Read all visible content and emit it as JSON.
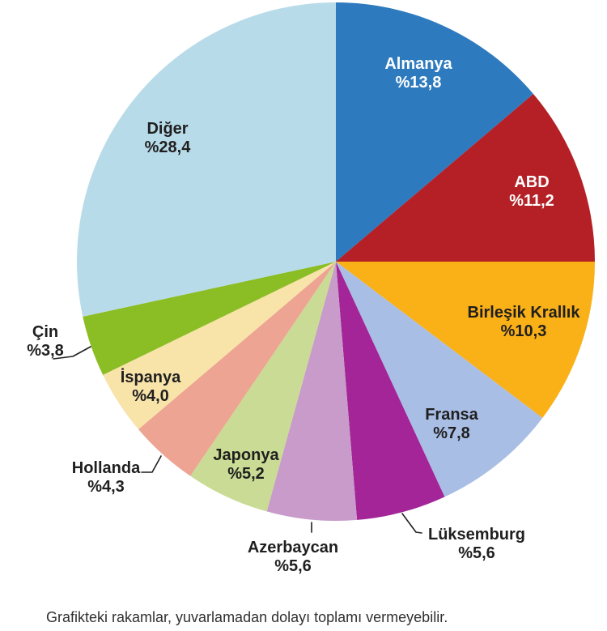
{
  "chart_data": {
    "type": "pie",
    "title": "",
    "unit": "percent",
    "start_angle_deg": 0,
    "direction": "clockwise",
    "legend_position": "none",
    "footnote": "Grafikteki rakamlar, yuvarlamadan dolayı toplamı vermeyebilir.",
    "slices": [
      {
        "label": "Almanya",
        "value": 13.8,
        "display": "%13,8",
        "color": "#2E7ABF",
        "label_color": "#ffffff",
        "label_position": "inside"
      },
      {
        "label": "ABD",
        "value": 11.2,
        "display": "%11,2",
        "color": "#B42025",
        "label_color": "#ffffff",
        "label_position": "inside"
      },
      {
        "label": "Birleşik Krallık",
        "value": 10.3,
        "display": "%10,3",
        "color": "#FAB017",
        "label_color": "#1f1f1f",
        "label_position": "inside"
      },
      {
        "label": "Fransa",
        "value": 7.8,
        "display": "%7,8",
        "color": "#A9BEE5",
        "label_color": "#1f1f1f",
        "label_position": "inside"
      },
      {
        "label": "Lüksemburg",
        "value": 5.6,
        "display": "%5,6",
        "color": "#A32598",
        "label_color": "#1f1f1f",
        "label_position": "outside"
      },
      {
        "label": "Azerbaycan",
        "value": 5.6,
        "display": "%5,6",
        "color": "#C89BCA",
        "label_color": "#1f1f1f",
        "label_position": "outside"
      },
      {
        "label": "Japonya",
        "value": 5.2,
        "display": "%5,2",
        "color": "#C9DB94",
        "label_color": "#1f1f1f",
        "label_position": "inside"
      },
      {
        "label": "Hollanda",
        "value": 4.3,
        "display": "%4,3",
        "color": "#EDA492",
        "label_color": "#1f1f1f",
        "label_position": "outside"
      },
      {
        "label": "İspanya",
        "value": 4.0,
        "display": "%4,0",
        "color": "#F8E3A9",
        "label_color": "#1f1f1f",
        "label_position": "inside"
      },
      {
        "label": "Çin",
        "value": 3.8,
        "display": "%3,8",
        "color": "#8BBD24",
        "label_color": "#1f1f1f",
        "label_position": "outside"
      },
      {
        "label": "Diğer",
        "value": 28.4,
        "display": "%28,4",
        "color": "#B8DBE9",
        "label_color": "#1f1f1f",
        "label_position": "inside"
      }
    ]
  }
}
